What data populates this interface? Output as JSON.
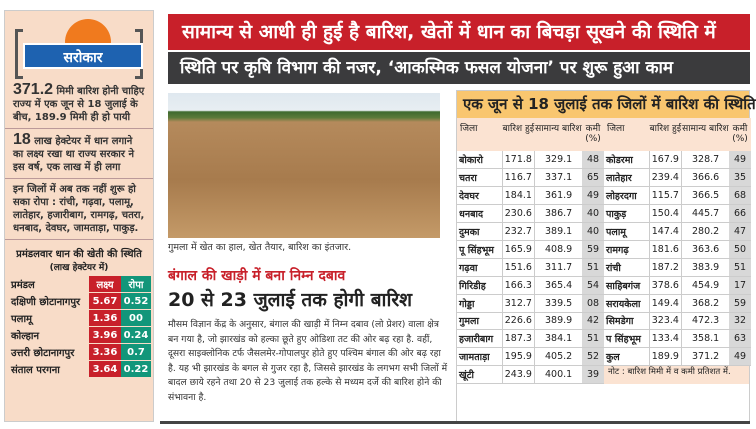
{
  "sidebar": {
    "logo_label": "सरोकार",
    "facts": [
      {
        "num": "371.2",
        "text": "मिमी बारिश होनी चाहिए राज्य में एक जून से 18 जुलाई के बीच, 189.9 मिमी ही हो पायी"
      },
      {
        "num": "18",
        "text": "लाख हेक्टेयर में धान लगाने का लक्ष्य रखा था राज्य सरकार ने इस वर्ष, एक लाख में ही लगा"
      },
      {
        "num": "",
        "text": "इन जिलों में अब तक नहीं शुरू हो सका रोपा : रांची, गढ़वा, पलामू, लातेहार, हजारीबाग, रामगढ़, चतरा, धनबाद, देवघर, जामताड़ा, पाकुड़."
      }
    ],
    "table_title": "प्रमंडलवार धान की खेती की स्थिति",
    "table_subtitle": "(लाख हेक्टेयर में)",
    "headers": [
      "प्रमंडल",
      "लक्ष्य",
      "रोपा"
    ],
    "rows": [
      [
        "दक्षिणी छोटानागपुर",
        "5.67",
        "0.52"
      ],
      [
        "पलामू",
        "1.36",
        "00"
      ],
      [
        "कोल्हान",
        "3.96",
        "0.24"
      ],
      [
        "उत्तरी छोटानागपुर",
        "3.36",
        "0.7"
      ],
      [
        "संताल परगना",
        "3.64",
        "0.22"
      ]
    ]
  },
  "headline1": "सामान्य से आधी ही हुई है बारिश, खेतों में धान का बिचड़ा सूखने की स्थिति में",
  "headline2": "स्थिति पर कृषि विभाग की नजर, ‘आकस्मिक फसल योजना’ पर शुरू हुआ काम",
  "photo_caption": "गुमला में खेत का हाल, खेत तैयार, बारिश का इंतजार.",
  "story": {
    "kicker": "बंगाल की खाड़ी में बना निम्न दबाव",
    "title": "20 से 23 जुलाई तक होगी बारिश",
    "body": "मौसम विज्ञान केंद्र के अनुसार, बंगाल की खाड़ी में निम्न दबाव (लो प्रेशर) वाला क्षेत्र बन गया है, जो झारखंड को हल्का छूते हुए ओडिशा तट की ओर बढ़ रहा है. वहीं, दूसरा साइक्लोनिक टर्फ जैसलमेर-गोपालपुर होते हुए पश्चिम बंगाल की ओर बढ़ रहा है. यह भी झारखंड के बगल से गुजर रहा है, जिससे झारखंड के लगभग सभी जिलों में बादल छाये रहने तथा 20 से 23 जुलाई तक हल्के से मध्यम दर्जे की बारिश होने की संभावना है."
  },
  "rain_table": {
    "title": "एक जून से 18 जुलाई तक जिलों में बारिश की स्थिति",
    "headers": [
      "जिला",
      "बारिश हुई",
      "सामान्य बारिश",
      "कमी (%)"
    ],
    "left": [
      [
        "बोकारो",
        "171.8",
        "329.1",
        "48"
      ],
      [
        "चतरा",
        "116.7",
        "337.1",
        "65"
      ],
      [
        "देवघर",
        "184.1",
        "361.9",
        "49"
      ],
      [
        "धनबाद",
        "230.6",
        "386.7",
        "40"
      ],
      [
        "दुमका",
        "232.7",
        "389.1",
        "40"
      ],
      [
        "पू सिंहभूम",
        "165.9",
        "408.9",
        "59"
      ],
      [
        "गढ़वा",
        "151.6",
        "311.7",
        "51"
      ],
      [
        "गिरिडीह",
        "166.3",
        "365.4",
        "54"
      ],
      [
        "गोड्डा",
        "312.7",
        "339.5",
        "08"
      ],
      [
        "गुमला",
        "226.6",
        "389.9",
        "42"
      ],
      [
        "हजारीबाग",
        "187.3",
        "384.1",
        "51"
      ],
      [
        "जामताड़ा",
        "195.9",
        "405.2",
        "52"
      ],
      [
        "खूंटी",
        "243.9",
        "400.1",
        "39"
      ]
    ],
    "right": [
      [
        "कोडरमा",
        "167.9",
        "328.7",
        "49"
      ],
      [
        "लातेहार",
        "239.4",
        "366.6",
        "35"
      ],
      [
        "लोहरदगा",
        "115.7",
        "366.5",
        "68"
      ],
      [
        "पाकुड़",
        "150.4",
        "445.7",
        "66"
      ],
      [
        "पलामू",
        "147.4",
        "280.2",
        "47"
      ],
      [
        "रामगढ़",
        "181.6",
        "363.6",
        "50"
      ],
      [
        "रांची",
        "187.2",
        "383.9",
        "51"
      ],
      [
        "साहिबगंज",
        "378.6",
        "454.9",
        "17"
      ],
      [
        "सरायकेला",
        "149.4",
        "368.2",
        "59"
      ],
      [
        "सिमडेगा",
        "323.4",
        "472.3",
        "32"
      ],
      [
        "प सिंहभूम",
        "133.4",
        "358.1",
        "63"
      ],
      [
        "कुल",
        "189.9",
        "371.2",
        "49"
      ]
    ],
    "note": "नोट : बारिश मिमी में व कमी प्रतिशत में."
  }
}
